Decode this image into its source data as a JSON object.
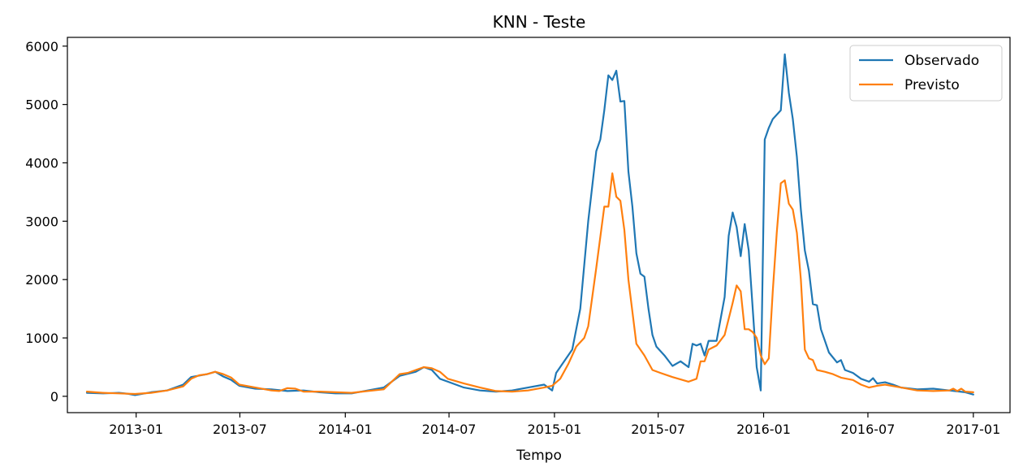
{
  "chart_data": {
    "type": "line",
    "title": "KNN - Teste",
    "xlabel": "Tempo",
    "ylabel": "",
    "x_tick_labels": [
      "2013-01",
      "2013-07",
      "2014-01",
      "2014-07",
      "2015-01",
      "2015-07",
      "2016-01",
      "2016-07",
      "2017-01"
    ],
    "x_tick_dates": [
      "2013-01-01",
      "2013-07-01",
      "2014-01-01",
      "2014-07-01",
      "2015-01-01",
      "2015-07-01",
      "2016-01-01",
      "2016-07-01",
      "2017-01-01"
    ],
    "y_ticks": [
      0,
      1000,
      2000,
      3000,
      4000,
      5000,
      6000
    ],
    "xlim": [
      "2012-09-03",
      "2017-03-06"
    ],
    "ylim": [
      -280,
      6150
    ],
    "legend_position": "top-right",
    "grid": false,
    "series": [
      {
        "name": "Observado",
        "color": "#1f77b4",
        "points": [
          [
            "2012-10-07",
            60
          ],
          [
            "2012-11-04",
            50
          ],
          [
            "2012-12-02",
            60
          ],
          [
            "2012-12-16",
            45
          ],
          [
            "2012-12-30",
            20
          ],
          [
            "2013-01-27",
            70
          ],
          [
            "2013-02-24",
            100
          ],
          [
            "2013-03-24",
            200
          ],
          [
            "2013-04-07",
            330
          ],
          [
            "2013-05-05",
            380
          ],
          [
            "2013-05-19",
            420
          ],
          [
            "2013-06-02",
            340
          ],
          [
            "2013-06-16",
            280
          ],
          [
            "2013-06-30",
            180
          ],
          [
            "2013-07-28",
            130
          ],
          [
            "2013-08-25",
            120
          ],
          [
            "2013-09-22",
            90
          ],
          [
            "2013-10-20",
            100
          ],
          [
            "2013-11-17",
            70
          ],
          [
            "2013-12-15",
            50
          ],
          [
            "2014-01-12",
            50
          ],
          [
            "2014-02-09",
            100
          ],
          [
            "2014-03-09",
            150
          ],
          [
            "2014-04-06",
            350
          ],
          [
            "2014-05-04",
            420
          ],
          [
            "2014-05-18",
            500
          ],
          [
            "2014-06-01",
            450
          ],
          [
            "2014-06-15",
            300
          ],
          [
            "2014-06-29",
            250
          ],
          [
            "2014-07-27",
            150
          ],
          [
            "2014-08-24",
            100
          ],
          [
            "2014-09-21",
            80
          ],
          [
            "2014-10-19",
            100
          ],
          [
            "2014-11-16",
            150
          ],
          [
            "2014-12-14",
            200
          ],
          [
            "2014-12-28",
            100
          ],
          [
            "2015-01-04",
            400
          ],
          [
            "2015-01-18",
            600
          ],
          [
            "2015-02-01",
            800
          ],
          [
            "2015-02-15",
            1500
          ],
          [
            "2015-03-01",
            3000
          ],
          [
            "2015-03-15",
            4200
          ],
          [
            "2015-03-22",
            4400
          ],
          [
            "2015-03-29",
            4900
          ],
          [
            "2015-04-05",
            5500
          ],
          [
            "2015-04-12",
            5420
          ],
          [
            "2015-04-19",
            5580
          ],
          [
            "2015-04-26",
            5050
          ],
          [
            "2015-05-03",
            5060
          ],
          [
            "2015-05-10",
            3850
          ],
          [
            "2015-05-17",
            3250
          ],
          [
            "2015-05-24",
            2450
          ],
          [
            "2015-05-31",
            2100
          ],
          [
            "2015-06-07",
            2050
          ],
          [
            "2015-06-14",
            1500
          ],
          [
            "2015-06-21",
            1050
          ],
          [
            "2015-06-28",
            850
          ],
          [
            "2015-07-12",
            700
          ],
          [
            "2015-07-26",
            520
          ],
          [
            "2015-08-09",
            600
          ],
          [
            "2015-08-23",
            500
          ],
          [
            "2015-08-30",
            900
          ],
          [
            "2015-09-06",
            870
          ],
          [
            "2015-09-13",
            900
          ],
          [
            "2015-09-20",
            700
          ],
          [
            "2015-09-27",
            950
          ],
          [
            "2015-10-11",
            950
          ],
          [
            "2015-10-25",
            1700
          ],
          [
            "2015-11-01",
            2750
          ],
          [
            "2015-11-08",
            3150
          ],
          [
            "2015-11-15",
            2900
          ],
          [
            "2015-11-22",
            2400
          ],
          [
            "2015-11-29",
            2950
          ],
          [
            "2015-12-06",
            2500
          ],
          [
            "2015-12-13",
            1500
          ],
          [
            "2015-12-20",
            500
          ],
          [
            "2015-12-27",
            100
          ],
          [
            "2016-01-03",
            4400
          ],
          [
            "2016-01-10",
            4600
          ],
          [
            "2016-01-17",
            4750
          ],
          [
            "2016-01-31",
            4900
          ],
          [
            "2016-02-07",
            5860
          ],
          [
            "2016-02-14",
            5200
          ],
          [
            "2016-02-21",
            4750
          ],
          [
            "2016-02-28",
            4100
          ],
          [
            "2016-03-06",
            3200
          ],
          [
            "2016-03-13",
            2500
          ],
          [
            "2016-03-20",
            2150
          ],
          [
            "2016-03-27",
            1580
          ],
          [
            "2016-04-03",
            1560
          ],
          [
            "2016-04-10",
            1150
          ],
          [
            "2016-04-24",
            750
          ],
          [
            "2016-05-08",
            580
          ],
          [
            "2016-05-15",
            620
          ],
          [
            "2016-05-22",
            450
          ],
          [
            "2016-06-05",
            400
          ],
          [
            "2016-06-19",
            300
          ],
          [
            "2016-07-03",
            250
          ],
          [
            "2016-07-10",
            310
          ],
          [
            "2016-07-17",
            220
          ],
          [
            "2016-07-31",
            240
          ],
          [
            "2016-08-14",
            200
          ],
          [
            "2016-08-28",
            150
          ],
          [
            "2016-09-25",
            120
          ],
          [
            "2016-10-23",
            130
          ],
          [
            "2016-11-20",
            100
          ],
          [
            "2016-12-18",
            70
          ],
          [
            "2017-01-01",
            30
          ]
        ]
      },
      {
        "name": "Previsto",
        "color": "#ff7f0e",
        "points": [
          [
            "2012-10-07",
            80
          ],
          [
            "2012-11-04",
            60
          ],
          [
            "2012-12-02",
            50
          ],
          [
            "2012-12-30",
            40
          ],
          [
            "2013-01-27",
            60
          ],
          [
            "2013-02-24",
            100
          ],
          [
            "2013-03-24",
            170
          ],
          [
            "2013-04-07",
            300
          ],
          [
            "2013-04-21",
            360
          ],
          [
            "2013-05-05",
            380
          ],
          [
            "2013-05-19",
            420
          ],
          [
            "2013-06-02",
            380
          ],
          [
            "2013-06-16",
            320
          ],
          [
            "2013-06-30",
            200
          ],
          [
            "2013-07-28",
            150
          ],
          [
            "2013-08-25",
            100
          ],
          [
            "2013-09-08",
            90
          ],
          [
            "2013-09-22",
            140
          ],
          [
            "2013-10-06",
            130
          ],
          [
            "2013-10-20",
            80
          ],
          [
            "2013-11-17",
            80
          ],
          [
            "2013-12-15",
            70
          ],
          [
            "2014-01-12",
            60
          ],
          [
            "2014-02-09",
            90
          ],
          [
            "2014-03-09",
            120
          ],
          [
            "2014-03-23",
            250
          ],
          [
            "2014-04-06",
            380
          ],
          [
            "2014-04-20",
            400
          ],
          [
            "2014-05-04",
            450
          ],
          [
            "2014-05-18",
            500
          ],
          [
            "2014-06-01",
            480
          ],
          [
            "2014-06-15",
            420
          ],
          [
            "2014-06-29",
            300
          ],
          [
            "2014-07-27",
            220
          ],
          [
            "2014-08-24",
            150
          ],
          [
            "2014-09-21",
            90
          ],
          [
            "2014-10-19",
            80
          ],
          [
            "2014-11-16",
            100
          ],
          [
            "2014-12-14",
            150
          ],
          [
            "2014-12-28",
            180
          ],
          [
            "2015-01-11",
            300
          ],
          [
            "2015-01-25",
            550
          ],
          [
            "2015-02-08",
            850
          ],
          [
            "2015-02-22",
            1000
          ],
          [
            "2015-03-01",
            1200
          ],
          [
            "2015-03-15",
            2200
          ],
          [
            "2015-03-29",
            3250
          ],
          [
            "2015-04-05",
            3250
          ],
          [
            "2015-04-12",
            3820
          ],
          [
            "2015-04-19",
            3420
          ],
          [
            "2015-04-26",
            3350
          ],
          [
            "2015-05-03",
            2850
          ],
          [
            "2015-05-10",
            2000
          ],
          [
            "2015-05-24",
            900
          ],
          [
            "2015-06-07",
            700
          ],
          [
            "2015-06-21",
            450
          ],
          [
            "2015-07-05",
            400
          ],
          [
            "2015-07-26",
            330
          ],
          [
            "2015-08-23",
            250
          ],
          [
            "2015-09-06",
            300
          ],
          [
            "2015-09-13",
            600
          ],
          [
            "2015-09-20",
            600
          ],
          [
            "2015-09-27",
            800
          ],
          [
            "2015-10-11",
            870
          ],
          [
            "2015-10-25",
            1050
          ],
          [
            "2015-11-08",
            1600
          ],
          [
            "2015-11-15",
            1900
          ],
          [
            "2015-11-22",
            1800
          ],
          [
            "2015-11-29",
            1150
          ],
          [
            "2015-12-06",
            1150
          ],
          [
            "2015-12-13",
            1100
          ],
          [
            "2015-12-20",
            1000
          ],
          [
            "2015-12-27",
            700
          ],
          [
            "2016-01-03",
            550
          ],
          [
            "2016-01-10",
            650
          ],
          [
            "2016-01-17",
            1800
          ],
          [
            "2016-01-24",
            2800
          ],
          [
            "2016-01-31",
            3650
          ],
          [
            "2016-02-07",
            3700
          ],
          [
            "2016-02-14",
            3300
          ],
          [
            "2016-02-21",
            3200
          ],
          [
            "2016-02-28",
            2800
          ],
          [
            "2016-03-06",
            2000
          ],
          [
            "2016-03-13",
            800
          ],
          [
            "2016-03-20",
            650
          ],
          [
            "2016-03-27",
            620
          ],
          [
            "2016-04-03",
            450
          ],
          [
            "2016-04-17",
            420
          ],
          [
            "2016-05-01",
            380
          ],
          [
            "2016-05-15",
            320
          ],
          [
            "2016-06-05",
            280
          ],
          [
            "2016-06-19",
            200
          ],
          [
            "2016-07-03",
            150
          ],
          [
            "2016-07-17",
            180
          ],
          [
            "2016-07-31",
            200
          ],
          [
            "2016-08-28",
            150
          ],
          [
            "2016-09-25",
            100
          ],
          [
            "2016-10-23",
            90
          ],
          [
            "2016-11-20",
            100
          ],
          [
            "2016-11-27",
            130
          ],
          [
            "2016-12-04",
            90
          ],
          [
            "2016-12-11",
            130
          ],
          [
            "2016-12-18",
            80
          ],
          [
            "2017-01-01",
            70
          ]
        ]
      }
    ]
  }
}
